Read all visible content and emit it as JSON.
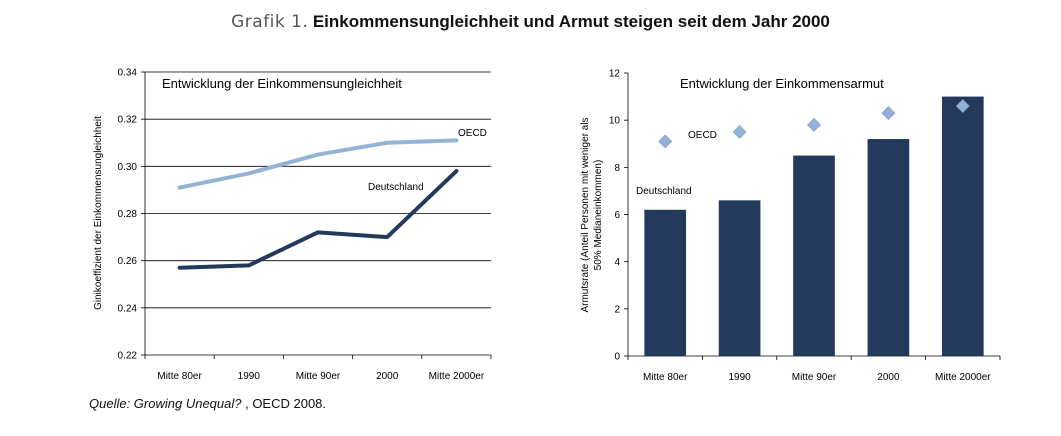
{
  "figure": {
    "prefix": "Grafik 1.",
    "title": "Einkommensungleichheit und Armut steigen seit dem Jahr 2000",
    "source_italic": "Quelle: Growing Unequal? ",
    "source_rest": ", OECD 2008."
  },
  "colors": {
    "oecd_line": "#95b3d7",
    "germany_line": "#243a5c",
    "bar": "#243a5c",
    "marker": "#93b1d6",
    "grid": "#000000"
  },
  "chart_data": [
    {
      "type": "line",
      "title": "Entwicklung der Einkommensungleichheit",
      "ylabel": "Ginikoeffizient der Einkommensungleichheit",
      "xlabel": "",
      "categories": [
        "Mitte 80er",
        "1990",
        "Mitte 90er",
        "2000",
        "Mitte 2000er"
      ],
      "ylim": [
        0.22,
        0.34
      ],
      "yticks": [
        "0.22",
        "0.24",
        "0.26",
        "0.28",
        "0.30",
        "0.32",
        "0.34"
      ],
      "grid": true,
      "series": [
        {
          "name": "OECD",
          "values": [
            0.291,
            0.297,
            0.305,
            0.31,
            0.311
          ]
        },
        {
          "name": "Deutschland",
          "values": [
            0.257,
            0.258,
            0.272,
            0.27,
            0.298
          ]
        }
      ]
    },
    {
      "type": "bar",
      "title": "Entwicklung der Einkommensarmut",
      "ylabel": "Armutsrate (Anteil Personen mit weniger als 50% Medianeinkommen)",
      "ylabel_lines": [
        "Armutsrate (Anteil Personen mit weniger als",
        "50% Medianeinkommen)"
      ],
      "xlabel": "",
      "categories": [
        "Mitte 80er",
        "1990",
        "Mitte 90er",
        "2000",
        "Mitte 2000er"
      ],
      "ylim": [
        0,
        12
      ],
      "yticks": [
        "0",
        "2",
        "4",
        "6",
        "8",
        "10",
        "12"
      ],
      "grid": false,
      "series": [
        {
          "name": "Deutschland",
          "values": [
            6.2,
            6.6,
            8.5,
            9.2,
            11.0
          ],
          "mark": "bar"
        },
        {
          "name": "OECD",
          "values": [
            9.1,
            9.5,
            9.8,
            10.3,
            10.6
          ],
          "mark": "diamond"
        }
      ]
    }
  ]
}
